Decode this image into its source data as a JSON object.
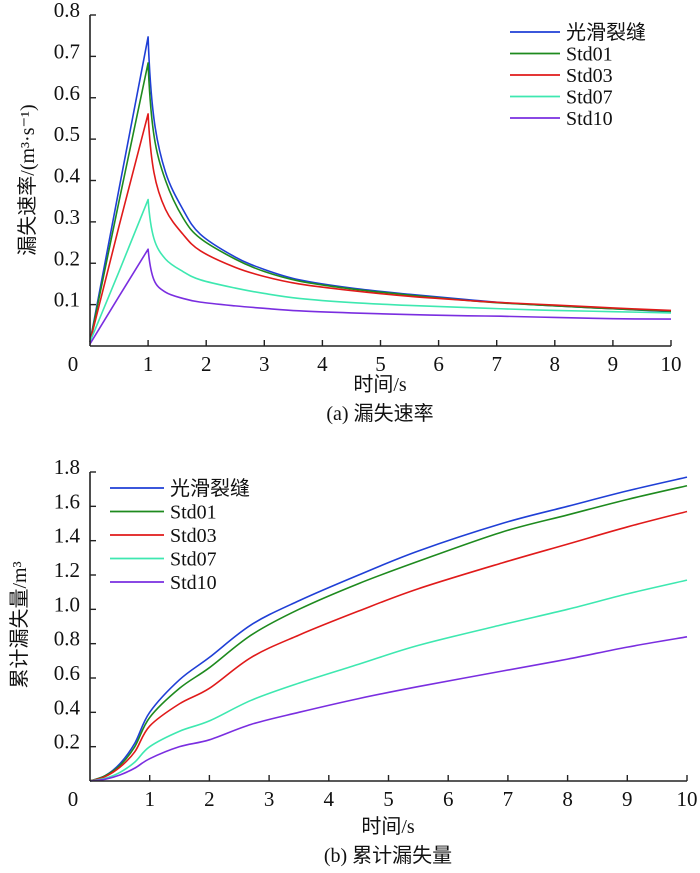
{
  "chart_data": [
    {
      "type": "line",
      "caption": "(a) 漏失速率",
      "xlabel": "时间/s",
      "ylabel": "漏失速率/(m³·s⁻¹)",
      "xlim": [
        0,
        10
      ],
      "ylim": [
        0,
        0.8
      ],
      "xticks": [
        "0",
        "1",
        "2",
        "3",
        "4",
        "5",
        "6",
        "7",
        "8",
        "9",
        "10"
      ],
      "yticks": [
        "0.1",
        "0.2",
        "0.3",
        "0.4",
        "0.5",
        "0.6",
        "0.7",
        "0.8"
      ],
      "grid": false,
      "legend_position": "top-right",
      "x": [
        0,
        0.5,
        1.0,
        1.1,
        1.3,
        1.6,
        1.9,
        2.5,
        3.0,
        3.6,
        4.5,
        5.5,
        6.5,
        7.07,
        8.0,
        9.0,
        10.0
      ],
      "series": [
        {
          "name": "光滑裂缝",
          "color": "#1f3fd6",
          "values": [
            0.01,
            0.38,
            0.747,
            0.55,
            0.42,
            0.33,
            0.27,
            0.215,
            0.185,
            0.16,
            0.14,
            0.125,
            0.112,
            0.105,
            0.097,
            0.09,
            0.083
          ]
        },
        {
          "name": "Std01",
          "color": "#1e8a1e",
          "values": [
            0.01,
            0.35,
            0.684,
            0.51,
            0.4,
            0.31,
            0.26,
            0.21,
            0.18,
            0.157,
            0.138,
            0.123,
            0.11,
            0.104,
            0.097,
            0.09,
            0.084
          ]
        },
        {
          "name": "Std03",
          "color": "#e01a1a",
          "values": [
            0.01,
            0.29,
            0.561,
            0.42,
            0.33,
            0.27,
            0.23,
            0.19,
            0.168,
            0.15,
            0.134,
            0.12,
            0.11,
            0.105,
            0.099,
            0.092,
            0.086
          ]
        },
        {
          "name": "Std07",
          "color": "#3ee8b0",
          "values": [
            0.01,
            0.18,
            0.354,
            0.26,
            0.21,
            0.18,
            0.16,
            0.14,
            0.127,
            0.115,
            0.105,
            0.098,
            0.093,
            0.09,
            0.086,
            0.083,
            0.08
          ]
        },
        {
          "name": "Std10",
          "color": "#7a2ee0",
          "values": [
            0.005,
            0.12,
            0.234,
            0.16,
            0.13,
            0.115,
            0.106,
            0.097,
            0.091,
            0.085,
            0.08,
            0.076,
            0.073,
            0.072,
            0.069,
            0.066,
            0.065
          ]
        }
      ]
    },
    {
      "type": "line",
      "caption": "(b) 累计漏失量",
      "xlabel": "时间/s",
      "ylabel": "累计漏失量/m³",
      "xlim": [
        0,
        10
      ],
      "ylim": [
        0,
        1.8
      ],
      "xticks": [
        "0",
        "1",
        "2",
        "3",
        "4",
        "5",
        "6",
        "7",
        "8",
        "9",
        "10"
      ],
      "yticks": [
        "0.2",
        "0.4",
        "0.6",
        "0.8",
        "1.0",
        "1.2",
        "1.4",
        "1.6",
        "1.8"
      ],
      "grid": false,
      "legend_position": "top-left",
      "x": [
        0,
        0.25,
        0.5,
        0.75,
        1.0,
        1.5,
        2.0,
        2.7,
        3.5,
        4.5,
        5.5,
        6.9,
        8.0,
        9.0,
        10.0
      ],
      "series": [
        {
          "name": "光滑裂缝",
          "color": "#1f3fd6",
          "values": [
            0,
            0.03,
            0.1,
            0.22,
            0.4,
            0.59,
            0.72,
            0.91,
            1.05,
            1.2,
            1.34,
            1.5,
            1.6,
            1.69,
            1.77
          ]
        },
        {
          "name": "Std01",
          "color": "#1e8a1e",
          "values": [
            0,
            0.03,
            0.09,
            0.2,
            0.37,
            0.54,
            0.66,
            0.85,
            1.0,
            1.15,
            1.28,
            1.45,
            1.55,
            1.64,
            1.72
          ]
        },
        {
          "name": "Std03",
          "color": "#e01a1a",
          "values": [
            0,
            0.025,
            0.08,
            0.17,
            0.32,
            0.45,
            0.54,
            0.72,
            0.85,
            0.99,
            1.12,
            1.27,
            1.38,
            1.48,
            1.57
          ]
        },
        {
          "name": "Std07",
          "color": "#3ee8b0",
          "values": [
            0,
            0.015,
            0.05,
            0.11,
            0.2,
            0.29,
            0.35,
            0.47,
            0.57,
            0.68,
            0.79,
            0.91,
            1.0,
            1.09,
            1.17
          ]
        },
        {
          "name": "Std10",
          "color": "#7a2ee0",
          "values": [
            0,
            0.01,
            0.035,
            0.075,
            0.13,
            0.2,
            0.24,
            0.33,
            0.4,
            0.48,
            0.55,
            0.64,
            0.71,
            0.78,
            0.84
          ]
        }
      ]
    }
  ]
}
